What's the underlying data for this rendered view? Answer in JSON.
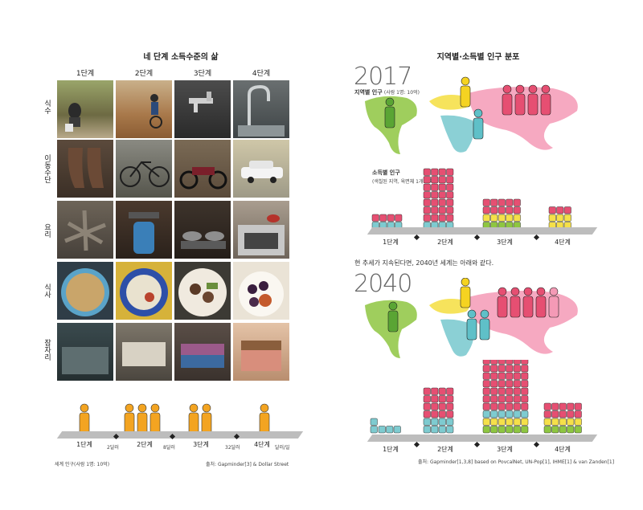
{
  "left": {
    "title": "네 단계 소득수준의 삶",
    "stages": [
      "1단계",
      "2단계",
      "3단계",
      "4단계"
    ],
    "rows": [
      {
        "label": "식수",
        "photos": [
          "village-water-well-icon",
          "dirt-road-water-carrier-icon",
          "outdoor-tap-icon",
          "kitchen-faucet-icon"
        ]
      },
      {
        "label": "이동수단",
        "photos": [
          "bare-feet-icon",
          "bicycle-icon",
          "motorbike-icon",
          "car-icon"
        ]
      },
      {
        "label": "요리",
        "photos": [
          "wood-fire-icon",
          "gas-cylinder-stove-icon",
          "gas-burner-icon",
          "oven-range-icon"
        ]
      },
      {
        "label": "식사",
        "photos": [
          "porridge-bowl-icon",
          "rice-plate-icon",
          "meat-plate-icon",
          "fruit-plate-icon"
        ]
      },
      {
        "label": "잠자리",
        "photos": [
          "floor-mat-icon",
          "mattress-on-floor-icon",
          "quilt-bed-icon",
          "bedroom-bed-icon"
        ]
      }
    ],
    "bottom": {
      "levels": [
        "1단계",
        "2단계",
        "3단계",
        "4단계"
      ],
      "thresholds": [
        "2달러",
        "8달러",
        "32달러"
      ],
      "unit": "달러/일",
      "people": [
        1,
        3,
        2,
        1
      ],
      "caption": "세계 인구(사람 1명: 10억)",
      "source": "출처: Gapminder[3] & Dollar Street"
    }
  },
  "right": {
    "title": "지역별·소득별 인구 분포",
    "year1": "2017",
    "region_label": "지역별 인구",
    "region_unit": "(사람 1명: 10억)",
    "income_label": "소득별 인구",
    "income_unit": "(색칠된 지역, 육면체 1개: 1억)",
    "levels": [
      "1단계",
      "2단계",
      "3단계",
      "4단계"
    ],
    "statement": "현 추세가 지속된다면, 2040년 세계는 아래와 같다.",
    "year2": "2040",
    "source": "출처: Gapminder[1,3,8] based on PovcalNet, UN-Pop[1], IHME[1] & van Zanden[1]"
  },
  "colors": {
    "africa": "#7ecbd0",
    "americas": "#8ec641",
    "asia": "#e64f72",
    "europe": "#f5e04a",
    "platform": "#bdbdbd"
  }
}
